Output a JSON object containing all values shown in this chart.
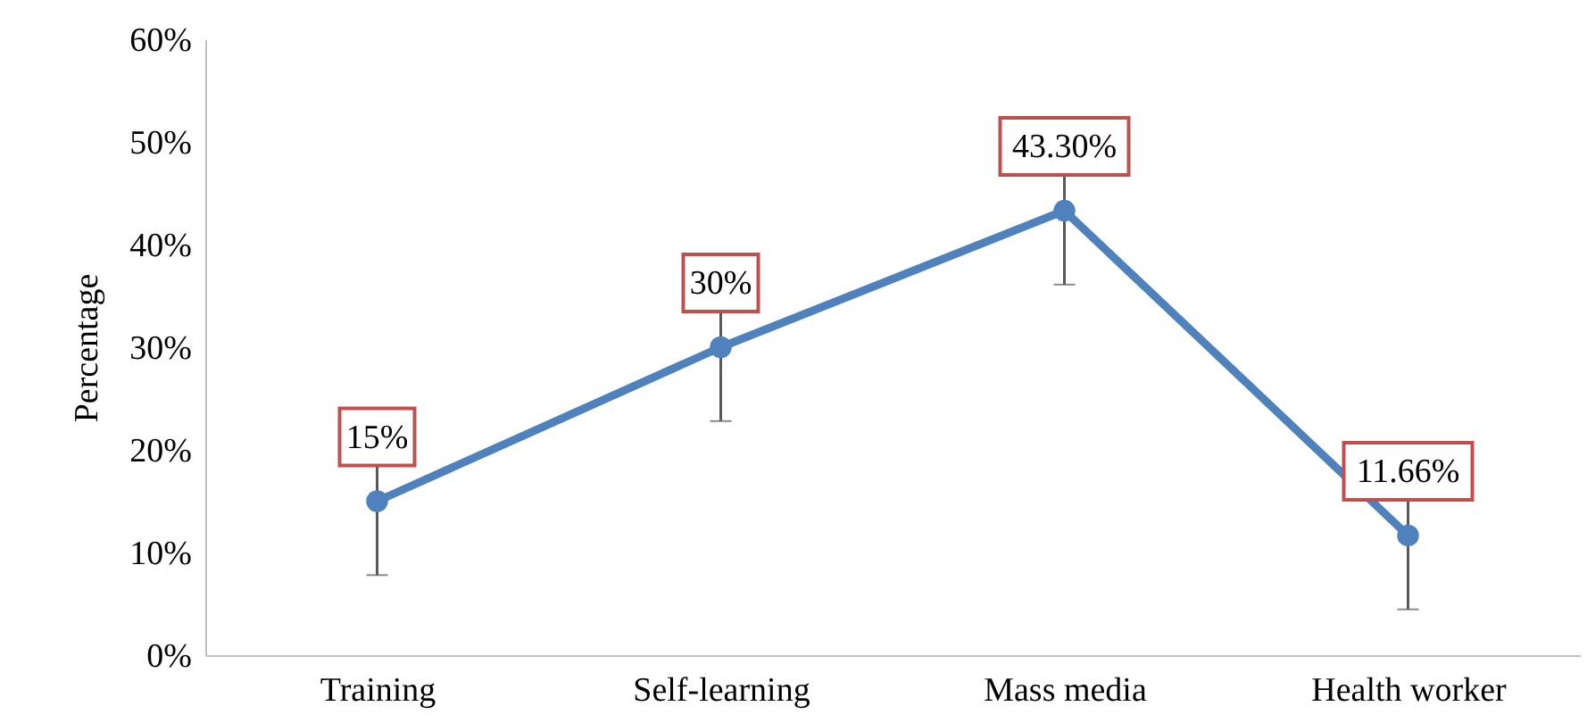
{
  "chart_data": {
    "type": "line",
    "ylabel": "Percentage",
    "categories": [
      "Training",
      "Self-learning",
      "Mass media",
      "Health worker"
    ],
    "series": [
      {
        "color": "#4f81bd",
        "values": [
          15,
          30,
          43.3,
          11.66
        ],
        "errors": [
          7.2,
          7.2,
          7.2,
          7.2
        ]
      }
    ],
    "value_labels": [
      "15%",
      "30%",
      "43.30%",
      "11.66%"
    ],
    "ylim": [
      0,
      60
    ],
    "yticks": [
      {
        "value": 0,
        "label": "0%"
      },
      {
        "value": 10,
        "label": "10%"
      },
      {
        "value": 20,
        "label": "20%"
      },
      {
        "value": 30,
        "label": "30%"
      },
      {
        "value": 40,
        "label": "40%"
      },
      {
        "value": 50,
        "label": "50%"
      },
      {
        "value": 60,
        "label": "60%"
      }
    ],
    "marker": "circle",
    "line_style": "solid",
    "grid": false
  }
}
